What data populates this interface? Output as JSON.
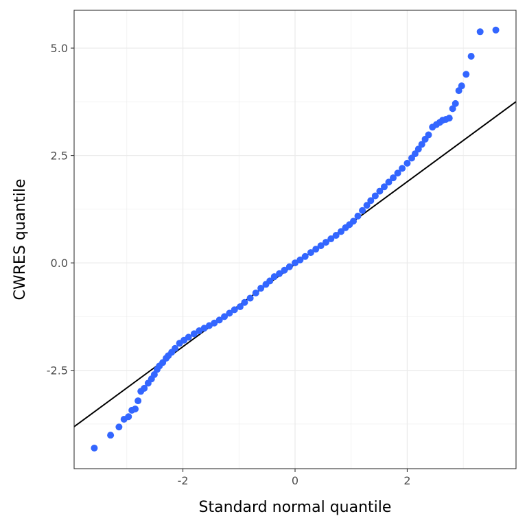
{
  "chart_data": {
    "type": "scatter",
    "title": "",
    "xlabel": "Standard normal quantile",
    "ylabel": "CWRES quantile",
    "xlim": [
      -3.94,
      3.94
    ],
    "ylim": [
      -4.79,
      5.88
    ],
    "xticks": [
      {
        "v": -2,
        "label": "-2"
      },
      {
        "v": 0,
        "label": "0"
      },
      {
        "v": 2,
        "label": "2"
      }
    ],
    "yticks": [
      {
        "v": -2.5,
        "label": "-2.5"
      },
      {
        "v": 0,
        "label": "0.0"
      },
      {
        "v": 2.5,
        "label": "2.5"
      },
      {
        "v": 5,
        "label": "5.0"
      }
    ],
    "grid": true,
    "reference_line": {
      "slope": 0.96,
      "intercept": -0.03
    },
    "colors": {
      "points": "#3366FF",
      "line": "#000000",
      "grid": "#EBEBEB",
      "border": "#333333"
    },
    "points": [
      [
        -3.58,
        -4.31
      ],
      [
        -3.29,
        -4.01
      ],
      [
        -3.14,
        -3.82
      ],
      [
        -3.05,
        -3.64
      ],
      [
        -2.97,
        -3.58
      ],
      [
        -2.91,
        -3.43
      ],
      [
        -2.85,
        -3.4
      ],
      [
        -2.8,
        -3.21
      ],
      [
        -2.75,
        -2.99
      ],
      [
        -2.69,
        -2.92
      ],
      [
        -2.62,
        -2.8
      ],
      [
        -2.56,
        -2.7
      ],
      [
        -2.51,
        -2.6
      ],
      [
        -2.46,
        -2.48
      ],
      [
        -2.42,
        -2.4
      ],
      [
        -2.36,
        -2.32
      ],
      [
        -2.3,
        -2.22
      ],
      [
        -2.26,
        -2.16
      ],
      [
        -2.2,
        -2.08
      ],
      [
        -2.14,
        -1.99
      ],
      [
        -2.06,
        -1.87
      ],
      [
        -1.98,
        -1.8
      ],
      [
        -1.9,
        -1.73
      ],
      [
        -1.8,
        -1.65
      ],
      [
        -1.71,
        -1.58
      ],
      [
        -1.62,
        -1.52
      ],
      [
        -1.53,
        -1.46
      ],
      [
        -1.44,
        -1.4
      ],
      [
        -1.35,
        -1.33
      ],
      [
        -1.26,
        -1.25
      ],
      [
        -1.17,
        -1.17
      ],
      [
        -1.08,
        -1.09
      ],
      [
        -0.98,
        -1.02
      ],
      [
        -0.9,
        -0.92
      ],
      [
        -0.8,
        -0.82
      ],
      [
        -0.7,
        -0.7
      ],
      [
        -0.61,
        -0.59
      ],
      [
        -0.52,
        -0.5
      ],
      [
        -0.45,
        -0.42
      ],
      [
        -0.37,
        -0.32
      ],
      [
        -0.28,
        -0.25
      ],
      [
        -0.19,
        -0.17
      ],
      [
        -0.1,
        -0.09
      ],
      [
        0,
        0
      ],
      [
        0.09,
        0.07
      ],
      [
        0.18,
        0.15
      ],
      [
        0.28,
        0.24
      ],
      [
        0.37,
        0.32
      ],
      [
        0.46,
        0.4
      ],
      [
        0.55,
        0.48
      ],
      [
        0.64,
        0.56
      ],
      [
        0.73,
        0.64
      ],
      [
        0.82,
        0.73
      ],
      [
        0.9,
        0.82
      ],
      [
        0.97,
        0.89
      ],
      [
        1.04,
        0.97
      ],
      [
        1.12,
        1.09
      ],
      [
        1.2,
        1.22
      ],
      [
        1.28,
        1.34
      ],
      [
        1.35,
        1.45
      ],
      [
        1.43,
        1.56
      ],
      [
        1.51,
        1.67
      ],
      [
        1.59,
        1.77
      ],
      [
        1.67,
        1.88
      ],
      [
        1.75,
        1.98
      ],
      [
        1.83,
        2.09
      ],
      [
        1.91,
        2.2
      ],
      [
        2.0,
        2.32
      ],
      [
        2.08,
        2.44
      ],
      [
        2.14,
        2.54
      ],
      [
        2.2,
        2.65
      ],
      [
        2.26,
        2.76
      ],
      [
        2.32,
        2.88
      ],
      [
        2.38,
        2.98
      ],
      [
        2.45,
        3.16
      ],
      [
        2.52,
        3.22
      ],
      [
        2.58,
        3.27
      ],
      [
        2.63,
        3.32
      ],
      [
        2.69,
        3.34
      ],
      [
        2.75,
        3.37
      ],
      [
        2.81,
        3.59
      ],
      [
        2.86,
        3.71
      ],
      [
        2.92,
        4.01
      ],
      [
        2.97,
        4.12
      ],
      [
        3.05,
        4.39
      ],
      [
        3.14,
        4.81
      ],
      [
        3.3,
        5.38
      ],
      [
        3.58,
        5.42
      ]
    ]
  }
}
